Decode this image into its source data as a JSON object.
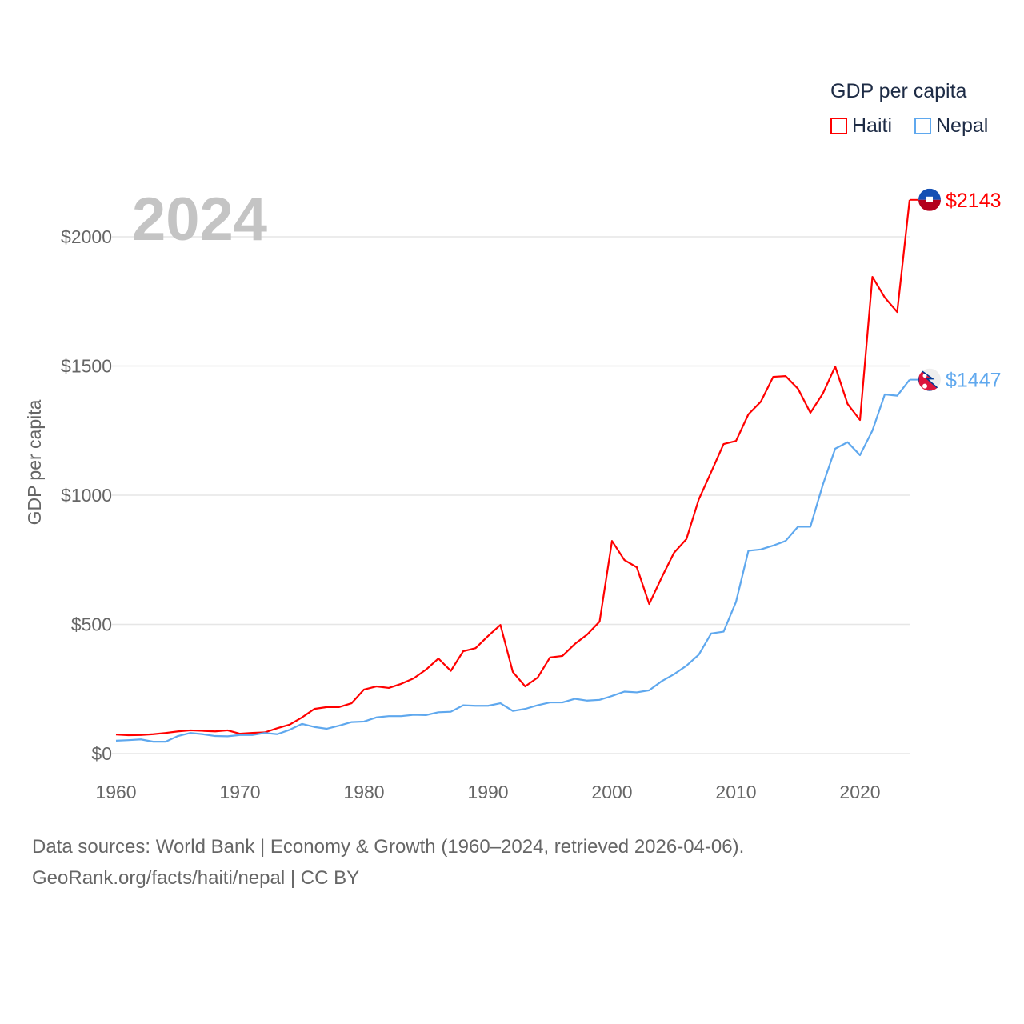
{
  "chart_data": {
    "type": "line",
    "title": "GDP per capita",
    "year_label": "2024",
    "xlabel": "",
    "ylabel": "GDP per capita",
    "xlim": [
      1960,
      2024
    ],
    "ylim": [
      0,
      2000
    ],
    "x_ticks": [
      1960,
      1970,
      1980,
      1990,
      2000,
      2010,
      2020
    ],
    "y_ticks": [
      0,
      500,
      1000,
      1500,
      2000
    ],
    "y_tick_labels": [
      "$0",
      "$500",
      "$1000",
      "$1500",
      "$2000"
    ],
    "grid": true,
    "legend_position": "top-right",
    "x": [
      1960,
      1961,
      1962,
      1963,
      1964,
      1965,
      1966,
      1967,
      1968,
      1969,
      1970,
      1971,
      1972,
      1973,
      1974,
      1975,
      1976,
      1977,
      1978,
      1979,
      1980,
      1981,
      1982,
      1983,
      1984,
      1985,
      1986,
      1987,
      1988,
      1989,
      1990,
      1991,
      1992,
      1993,
      1994,
      1995,
      1996,
      1997,
      1998,
      1999,
      2000,
      2001,
      2002,
      2003,
      2004,
      2005,
      2006,
      2007,
      2008,
      2009,
      2010,
      2011,
      2012,
      2013,
      2014,
      2015,
      2016,
      2017,
      2018,
      2019,
      2020,
      2021,
      2022,
      2023,
      2024
    ],
    "series": [
      {
        "name": "Haiti",
        "color": "#ff0000",
        "end_label": "$2143",
        "flag": "haiti-flag",
        "values": [
          74,
          71,
          72,
          75,
          80,
          86,
          90,
          88,
          86,
          90,
          77,
          80,
          82,
          98,
          112,
          140,
          173,
          180,
          180,
          195,
          248,
          260,
          254,
          270,
          291,
          325,
          368,
          320,
          396,
          408,
          455,
          498,
          316,
          260,
          294,
          372,
          378,
          424,
          461,
          511,
          823,
          749,
          721,
          579,
          681,
          777,
          830,
          984,
          1090,
          1198,
          1210,
          1313,
          1362,
          1458,
          1461,
          1412,
          1319,
          1393,
          1498,
          1353,
          1291,
          1845,
          1765,
          1709,
          2143
        ]
      },
      {
        "name": "Nepal",
        "color": "#5fa8ee",
        "end_label": "$1447",
        "flag": "nepal-flag",
        "values": [
          50,
          52,
          55,
          46,
          46,
          68,
          80,
          75,
          68,
          67,
          72,
          72,
          80,
          75,
          92,
          115,
          103,
          96,
          108,
          122,
          124,
          140,
          145,
          145,
          150,
          149,
          160,
          162,
          187,
          185,
          185,
          195,
          165,
          173,
          187,
          198,
          198,
          212,
          205,
          208,
          223,
          240,
          237,
          245,
          280,
          307,
          340,
          383,
          465,
          472,
          587,
          785,
          790,
          805,
          823,
          878,
          878,
          1040,
          1180,
          1205,
          1155,
          1250,
          1390,
          1385,
          1447
        ]
      }
    ]
  },
  "footer": {
    "sources": "Data sources: World Bank | Economy & Growth (1960–2024, retrieved 2026-04-06).",
    "credit": "GeoRank.org/facts/haiti/nepal | CC BY"
  }
}
